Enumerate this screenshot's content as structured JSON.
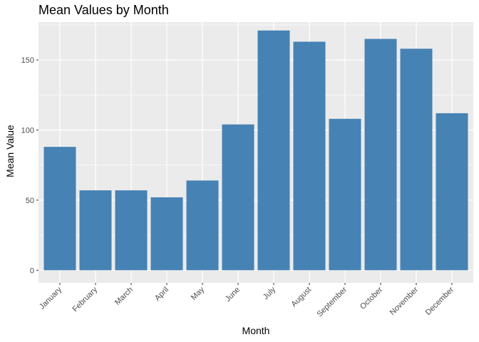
{
  "chart_data": {
    "type": "bar",
    "title": "Mean Values by Month",
    "xlabel": "Month",
    "ylabel": "Mean Value",
    "categories": [
      "January",
      "February",
      "March",
      "April",
      "May",
      "June",
      "July",
      "August",
      "September",
      "October",
      "November",
      "December"
    ],
    "values": [
      88,
      57,
      57,
      52,
      64,
      104,
      171,
      163,
      108,
      165,
      158,
      112
    ],
    "ylim": [
      -9,
      177
    ],
    "yticks": [
      0,
      50,
      100,
      150
    ],
    "grid": true,
    "legend": "none",
    "colors": {
      "bar": "#4682B4",
      "panel": "#EBEBEB",
      "grid": "#FFFFFF"
    }
  }
}
